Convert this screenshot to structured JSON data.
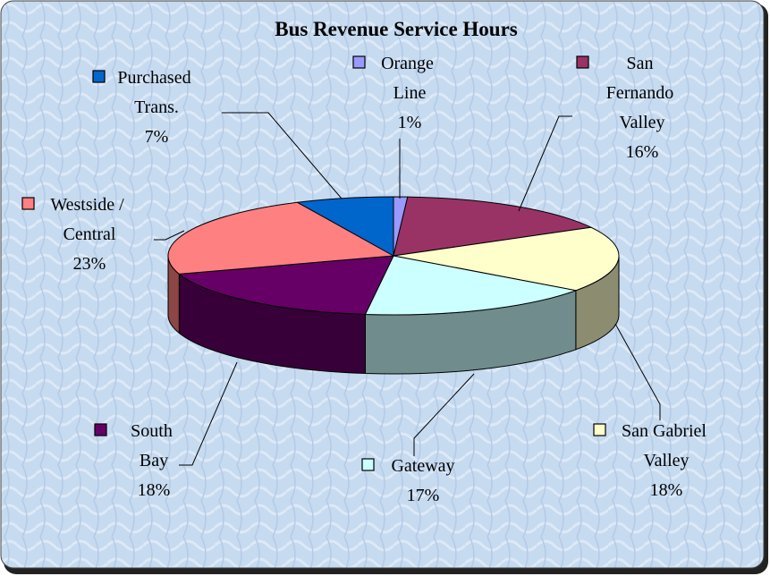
{
  "chart_data": {
    "type": "pie",
    "title": "Bus Revenue Service Hours",
    "categories": [
      "Orange Line",
      "San Fernando Valley",
      "San Gabriel Valley",
      "Gateway",
      "South Bay",
      "Westside / Central",
      "Purchased Trans."
    ],
    "values": [
      1,
      16,
      18,
      17,
      18,
      23,
      7
    ],
    "value_labels": [
      "1%",
      "16%",
      "18%",
      "17%",
      "18%",
      "23%",
      "7%"
    ],
    "colors": [
      "#9999ff",
      "#993366",
      "#ffffcc",
      "#ccffff",
      "#660066",
      "#ff8080",
      "#0066cc"
    ],
    "three_d": true
  }
}
